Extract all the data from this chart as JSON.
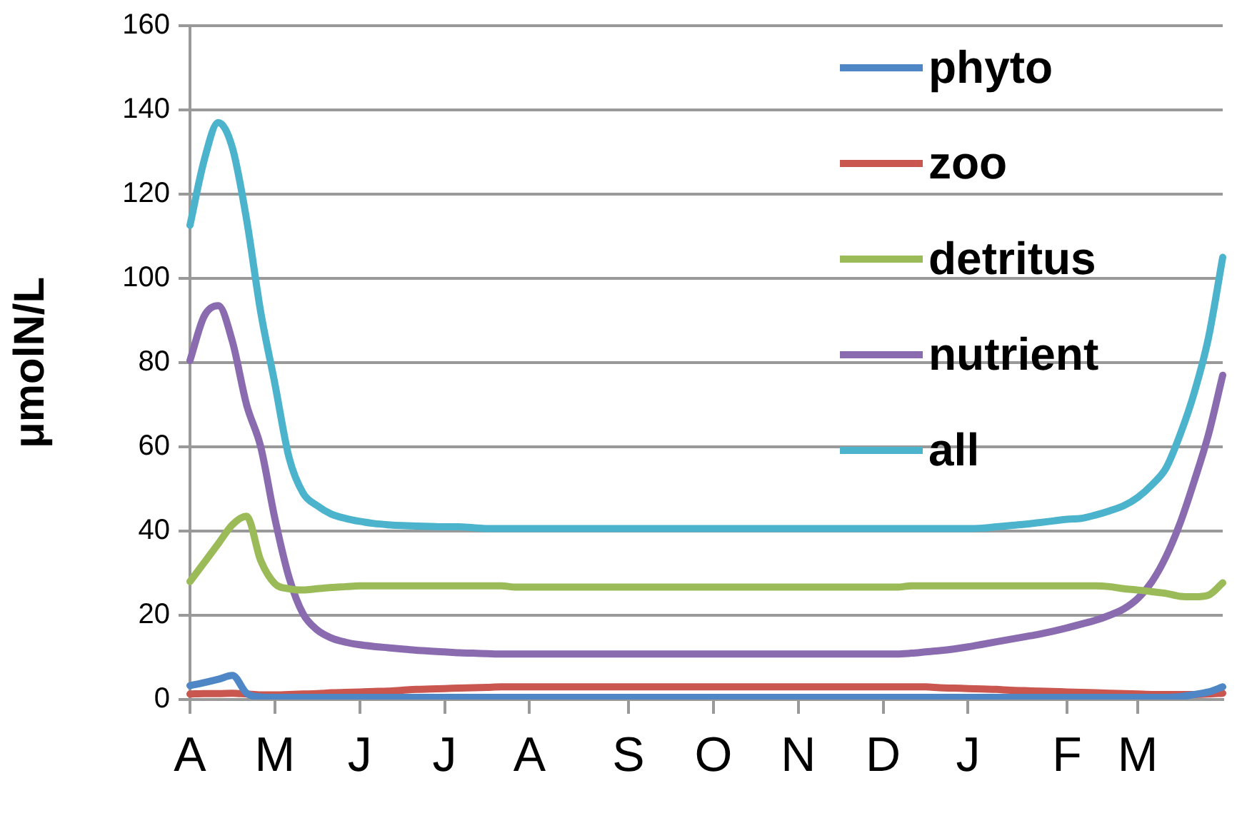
{
  "chart_data": {
    "type": "line",
    "ylabel": "μmolN/L",
    "ylim": [
      0,
      160
    ],
    "categories": [
      "A",
      null,
      null,
      null,
      null,
      null,
      "M",
      null,
      null,
      null,
      null,
      null,
      "J",
      null,
      null,
      null,
      null,
      null,
      "J",
      null,
      null,
      null,
      null,
      null,
      "A",
      null,
      null,
      null,
      null,
      null,
      null,
      "S",
      null,
      null,
      null,
      null,
      null,
      "O",
      null,
      null,
      null,
      null,
      null,
      "N",
      null,
      null,
      null,
      null,
      null,
      "D",
      null,
      null,
      null,
      null,
      null,
      "J",
      null,
      null,
      null,
      null,
      null,
      null,
      "F",
      null,
      null,
      null,
      null,
      "M",
      null,
      null,
      null,
      null,
      null,
      null
    ],
    "yticks": [
      0,
      20,
      40,
      60,
      80,
      100,
      120,
      140,
      160
    ],
    "grid": "y",
    "legend": "top right",
    "marker": "none",
    "line_style": "solid",
    "series": [
      {
        "name": "phyto",
        "color": "#4f86c6",
        "values": [
          3.3,
          4,
          4.8,
          5.7,
          1.5,
          0.6,
          0.5,
          0.5,
          0.5,
          0.5,
          0.5,
          0.5,
          0.5,
          0.5,
          0.5,
          0.5,
          0.5,
          0.5,
          0.5,
          0.5,
          0.5,
          0.5,
          0.5,
          0.5,
          0.5,
          0.5,
          0.5,
          0.5,
          0.5,
          0.5,
          0.5,
          0.5,
          0.5,
          0.5,
          0.5,
          0.5,
          0.5,
          0.5,
          0.5,
          0.5,
          0.5,
          0.5,
          0.5,
          0.5,
          0.5,
          0.5,
          0.5,
          0.5,
          0.5,
          0.5,
          0.5,
          0.5,
          0.5,
          0.5,
          0.5,
          0.5,
          0.5,
          0.5,
          0.5,
          0.5,
          0.5,
          0.5,
          0.5,
          0.5,
          0.5,
          0.5,
          0.5,
          0.5,
          0.5,
          0.5,
          0.7,
          1.2,
          1.8,
          3
        ]
      },
      {
        "name": "zoo",
        "color": "#c9564f",
        "values": [
          1.3,
          1.4,
          1.4,
          1.5,
          1.3,
          1.1,
          1.1,
          1.2,
          1.3,
          1.4,
          1.6,
          1.7,
          1.8,
          1.9,
          2,
          2.2,
          2.4,
          2.5,
          2.6,
          2.7,
          2.8,
          2.9,
          3,
          3,
          3,
          3,
          3,
          3,
          3,
          3,
          3,
          3,
          3,
          3,
          3,
          3,
          3,
          3,
          3,
          3,
          3,
          3,
          3,
          3,
          3,
          3,
          3,
          3,
          3,
          3,
          3,
          3,
          3,
          2.8,
          2.7,
          2.6,
          2.5,
          2.4,
          2.2,
          2.1,
          2,
          1.9,
          1.8,
          1.7,
          1.6,
          1.5,
          1.4,
          1.3,
          1.2,
          1.2,
          1.2,
          1.2,
          1.3,
          1.5
        ]
      },
      {
        "name": "detritus",
        "color": "#9bbb59",
        "values": [
          28,
          32.5,
          37,
          41.5,
          43.5,
          33,
          27.5,
          26.3,
          26,
          26.3,
          26.6,
          26.8,
          27,
          27,
          27,
          27,
          27,
          27,
          27,
          27,
          27,
          27,
          27,
          26.7,
          26.7,
          26.7,
          26.7,
          26.7,
          26.7,
          26.7,
          26.7,
          26.7,
          26.7,
          26.7,
          26.7,
          26.7,
          26.7,
          26.7,
          26.7,
          26.7,
          26.7,
          26.7,
          26.7,
          26.7,
          26.7,
          26.7,
          26.7,
          26.7,
          26.7,
          26.7,
          26.7,
          27,
          27,
          27,
          27,
          27,
          27,
          27,
          27,
          27,
          27,
          27,
          27,
          27,
          27,
          26.8,
          26.3,
          26,
          25.6,
          25.2,
          24.5,
          24.4,
          24.8,
          27.7
        ]
      },
      {
        "name": "nutrient",
        "color": "#8a6bb0",
        "values": [
          80.5,
          91,
          93.5,
          85,
          70,
          60,
          43,
          29,
          20.3,
          16.5,
          14.6,
          13.6,
          13,
          12.6,
          12.3,
          12,
          11.7,
          11.5,
          11.3,
          11.1,
          11,
          10.9,
          10.8,
          10.8,
          10.8,
          10.8,
          10.8,
          10.8,
          10.8,
          10.8,
          10.8,
          10.8,
          10.8,
          10.8,
          10.8,
          10.8,
          10.8,
          10.8,
          10.8,
          10.8,
          10.8,
          10.8,
          10.8,
          10.8,
          10.8,
          10.8,
          10.8,
          10.8,
          10.8,
          10.8,
          10.8,
          11,
          11.3,
          11.6,
          12,
          12.5,
          13.1,
          13.7,
          14.3,
          14.9,
          15.5,
          16.2,
          17,
          17.9,
          18.8,
          20,
          21.5,
          24,
          28,
          34,
          42,
          52,
          63,
          77
        ]
      },
      {
        "name": "all",
        "color": "#4bb3cc",
        "values": [
          112.6,
          128,
          137,
          131,
          114,
          92,
          75,
          57.5,
          49,
          46,
          44,
          43,
          42.3,
          41.8,
          41.5,
          41.3,
          41.2,
          41.1,
          41,
          41,
          40.8,
          40.6,
          40.6,
          40.6,
          40.6,
          40.6,
          40.6,
          40.6,
          40.6,
          40.6,
          40.6,
          40.6,
          40.6,
          40.6,
          40.6,
          40.6,
          40.6,
          40.6,
          40.6,
          40.6,
          40.6,
          40.6,
          40.6,
          40.6,
          40.6,
          40.6,
          40.6,
          40.6,
          40.6,
          40.6,
          40.6,
          40.6,
          40.6,
          40.6,
          40.6,
          40.6,
          40.7,
          41,
          41.3,
          41.6,
          42,
          42.4,
          42.8,
          43,
          43.8,
          44.8,
          46,
          48,
          51,
          55,
          63,
          73,
          86,
          105
        ]
      }
    ]
  }
}
